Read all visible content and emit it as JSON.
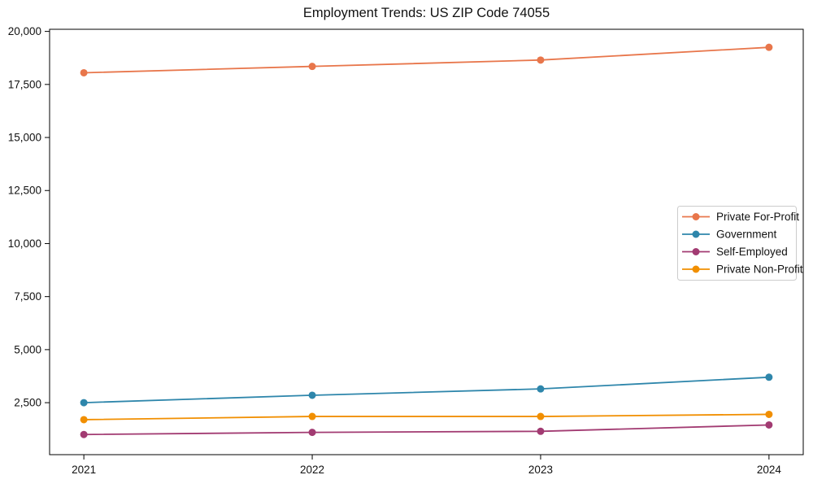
{
  "page": {
    "background": "#ffffff",
    "text_color": "#111111"
  },
  "chart_data": {
    "type": "line",
    "title": "Employment Trends: US ZIP Code 74055",
    "xlabel": "",
    "ylabel": "",
    "grid": false,
    "legend_position": "center-right",
    "x": [
      2021,
      2022,
      2023,
      2024
    ],
    "x_tick_labels": [
      "2021",
      "2022",
      "2023",
      "2024"
    ],
    "y_tick_values": [
      2500,
      5000,
      7500,
      10000,
      12500,
      15000,
      17500,
      20000
    ],
    "y_tick_labels": [
      "2,500",
      "5,000",
      "7,500",
      "10,000",
      "12,500",
      "15,000",
      "17,500",
      "20,000"
    ],
    "xlim": [
      2020.85,
      2024.15
    ],
    "ylim": [
      50,
      20100
    ],
    "axis_color": "#000000",
    "legend_border_color": "#cccccc",
    "series": [
      {
        "name": "Private For-Profit",
        "color": "#E8764B",
        "values": [
          18050,
          18350,
          18650,
          19250
        ]
      },
      {
        "name": "Government",
        "color": "#2E86AB",
        "values": [
          2500,
          2850,
          3150,
          3700
        ]
      },
      {
        "name": "Self-Employed",
        "color": "#A23B72",
        "values": [
          1000,
          1100,
          1150,
          1450
        ]
      },
      {
        "name": "Private Non-Profit",
        "color": "#F18F01",
        "values": [
          1700,
          1850,
          1850,
          1950
        ]
      }
    ]
  }
}
